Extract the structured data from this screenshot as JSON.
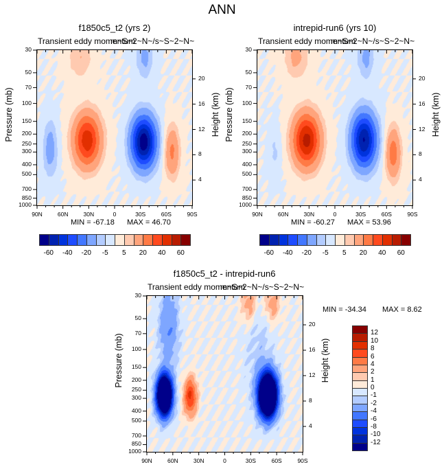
{
  "figure_title": "ANN",
  "chart_data": [
    {
      "type": "heatmap",
      "id": "model1",
      "title": "f1850c5_t2 (yrs 2)",
      "subtitle_left": "Transient eddy momentum",
      "subtitle_right": "m~S~2~N~/s~S~2~N~",
      "xlabel": "",
      "ylabel": "Pressure (mb)",
      "ylabel_right": "Height (km)",
      "x_ticks": [
        "90N",
        "60N",
        "30N",
        "0",
        "30S",
        "60S",
        "90S"
      ],
      "y_ticks": [
        "30",
        "50",
        "70",
        "100",
        "150",
        "200",
        "250",
        "300",
        "400",
        "500",
        "700",
        "850",
        "1000"
      ],
      "y_ticks_right": [
        "20",
        "16",
        "12",
        "8",
        "4"
      ],
      "xlim": [
        90,
        -90
      ],
      "ylim_mb": [
        1000,
        30
      ],
      "min_label": "MIN = -67.18",
      "max_label": "MAX =  46.70",
      "min": -67.18,
      "max": 46.7,
      "features": [
        {
          "lat": 32,
          "p": 230,
          "amp": 46.7,
          "lat_width": 11,
          "logp_width": 0.42
        },
        {
          "lat": -34,
          "p": 240,
          "amp": -67.18,
          "lat_width": 10,
          "logp_width": 0.4
        },
        {
          "lat": 75,
          "p": 280,
          "amp": -14,
          "lat_width": 6,
          "logp_width": 0.45
        },
        {
          "lat": -67,
          "p": 300,
          "amp": 22,
          "lat_width": 6,
          "logp_width": 0.4
        },
        {
          "lat": -35,
          "p": 35,
          "amp": -12,
          "lat_width": 7,
          "logp_width": 0.35
        },
        {
          "lat": 40,
          "p": 35,
          "amp": 10,
          "lat_width": 10,
          "logp_width": 0.35
        }
      ]
    },
    {
      "type": "heatmap",
      "id": "model2",
      "title": "intrepid-run6 (yrs 10)",
      "subtitle_left": "Transient eddy momentum",
      "subtitle_right": "m~S~2~N~/s~S~2~N~",
      "xlabel": "",
      "ylabel": "Pressure (mb)",
      "ylabel_right": "Height (km)",
      "x_ticks": [
        "90N",
        "60N",
        "30N",
        "0",
        "30S",
        "60S",
        "90S"
      ],
      "y_ticks": [
        "30",
        "50",
        "70",
        "100",
        "150",
        "200",
        "250",
        "300",
        "400",
        "500",
        "700",
        "850",
        "1000"
      ],
      "y_ticks_right": [
        "20",
        "16",
        "12",
        "8",
        "4"
      ],
      "xlim": [
        90,
        -90
      ],
      "ylim_mb": [
        1000,
        30
      ],
      "min_label": "MIN = -60.27",
      "max_label": "MAX =  53.96",
      "min": -60.27,
      "max": 53.96,
      "features": [
        {
          "lat": 33,
          "p": 230,
          "amp": 53.96,
          "lat_width": 11,
          "logp_width": 0.42
        },
        {
          "lat": -34,
          "p": 230,
          "amp": -60.27,
          "lat_width": 10,
          "logp_width": 0.42
        },
        {
          "lat": 70,
          "p": 300,
          "amp": -6,
          "lat_width": 5,
          "logp_width": 0.4
        },
        {
          "lat": -68,
          "p": 310,
          "amp": 26,
          "lat_width": 6,
          "logp_width": 0.4
        },
        {
          "lat": -36,
          "p": 35,
          "amp": -12,
          "lat_width": 7,
          "logp_width": 0.35
        },
        {
          "lat": 45,
          "p": 35,
          "amp": 12,
          "lat_width": 10,
          "logp_width": 0.35
        }
      ]
    },
    {
      "type": "heatmap",
      "id": "difference",
      "title": "f1850c5_t2 - intrepid-run6",
      "subtitle_left": "Transient eddy momentum",
      "subtitle_right": "m~S~2~N~/s~S~2~N~",
      "xlabel": "",
      "ylabel": "Pressure (mb)",
      "ylabel_right": "Height (km)",
      "x_ticks": [
        "90N",
        "60N",
        "30N",
        "0",
        "30S",
        "60S",
        "90S"
      ],
      "y_ticks": [
        "30",
        "50",
        "70",
        "100",
        "150",
        "200",
        "250",
        "300",
        "400",
        "500",
        "700",
        "850",
        "1000"
      ],
      "y_ticks_right": [
        "20",
        "16",
        "12",
        "8",
        "4"
      ],
      "xlim": [
        90,
        -90
      ],
      "ylim_mb": [
        1000,
        30
      ],
      "min_label": "MIN = -34.34",
      "max_label": "MAX =   8.62",
      "min": -34.34,
      "max": 8.62,
      "features": [
        {
          "lat": 70,
          "p": 280,
          "amp": -30,
          "lat_width": 6,
          "logp_width": 0.3
        },
        {
          "lat": -50,
          "p": 280,
          "amp": -34.34,
          "lat_width": 7,
          "logp_width": 0.32
        },
        {
          "lat": 40,
          "p": 290,
          "amp": 8.62,
          "lat_width": 5,
          "logp_width": 0.28
        },
        {
          "lat": 65,
          "p": 60,
          "amp": -4,
          "lat_width": 8,
          "logp_width": 0.6
        },
        {
          "lat": -28,
          "p": 35,
          "amp": 3,
          "lat_width": 6,
          "logp_width": 0.3
        },
        {
          "lat": -55,
          "p": 35,
          "amp": 3,
          "lat_width": 6,
          "logp_width": 0.3
        },
        {
          "lat": -40,
          "p": 120,
          "amp": -1.5,
          "lat_width": 12,
          "logp_width": 0.8
        }
      ]
    }
  ],
  "colorbars": {
    "model": {
      "orientation": "horizontal",
      "levels": [
        -60,
        -50,
        -40,
        -30,
        -20,
        -10,
        -5,
        0,
        5,
        10,
        20,
        30,
        40,
        50,
        60
      ],
      "labels": [
        "-60",
        "-40",
        "-20",
        "-5",
        "5",
        "20",
        "40",
        "60"
      ],
      "colors": [
        "#00008a",
        "#0022b0",
        "#0033dd",
        "#1e4cff",
        "#4277ff",
        "#7ea6ff",
        "#b3ccff",
        "#d8e8ff",
        "#ffebd9",
        "#ffcab0",
        "#ffa47c",
        "#ff7a45",
        "#ff4a1e",
        "#e22f00",
        "#b81c00",
        "#870000"
      ]
    },
    "difference": {
      "orientation": "vertical",
      "levels": [
        -12,
        -10,
        -8,
        -6,
        -4,
        -2,
        -1,
        0,
        1,
        2,
        4,
        6,
        8,
        10,
        12
      ],
      "labels": [
        "12",
        "10",
        "8",
        "6",
        "4",
        "2",
        "1",
        "0",
        "-1",
        "-2",
        "-4",
        "-6",
        "-8",
        "-10",
        "-12"
      ],
      "colors": [
        "#00008a",
        "#0022b0",
        "#0033dd",
        "#1e4cff",
        "#4277ff",
        "#7ea6ff",
        "#b3ccff",
        "#d8e8ff",
        "#ffebd9",
        "#ffcab0",
        "#ffa47c",
        "#ff7a45",
        "#ff4a1e",
        "#e22f00",
        "#b81c00",
        "#870000"
      ]
    }
  }
}
